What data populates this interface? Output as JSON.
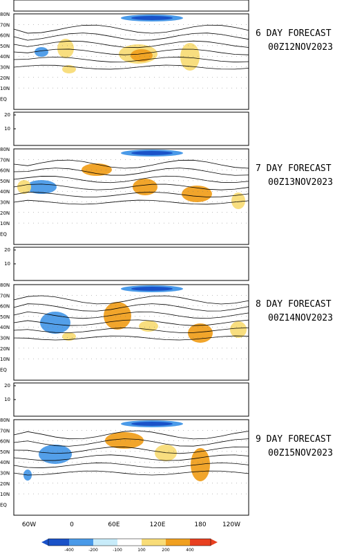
{
  "panels": [
    {
      "title": "6 DAY FORECAST",
      "date": "00Z12NOV2023"
    },
    {
      "title": "7 DAY FORECAST",
      "date": "00Z13NOV2023"
    },
    {
      "title": "8 DAY FORECAST",
      "date": "00Z14NOV2023"
    },
    {
      "title": "9 DAY FORECAST",
      "date": "00Z15NOV2023"
    }
  ],
  "lat_labels": [
    "80N",
    "70N",
    "60N",
    "50N",
    "40N",
    "30N",
    "20N",
    "10N",
    "EQ"
  ],
  "strip_labels": [
    "20",
    "10"
  ],
  "lon_labels": [
    "60W",
    "0",
    "60E",
    "120E",
    "180",
    "120W"
  ],
  "colorbar": {
    "labels": [
      "-400",
      "-200",
      "-100",
      "100",
      "200",
      "400"
    ]
  }
}
